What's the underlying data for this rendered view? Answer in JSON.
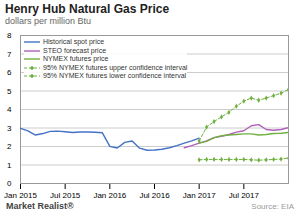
{
  "chart_data": {
    "type": "line",
    "title": "Henry Hub Natural Gas Price",
    "subtitle": "dollars per million Btu",
    "watermark": "Market Realist®",
    "source": "Source: EIA",
    "series": [
      {
        "name": "Historical spot price",
        "color": "#4472c4",
        "x": [
          0,
          1,
          2,
          3,
          4,
          5,
          6,
          7,
          8,
          9,
          10,
          11,
          12,
          13,
          14,
          15,
          16,
          17,
          18,
          19,
          20,
          21,
          22,
          23,
          24
        ],
        "values": [
          2.98,
          2.84,
          2.62,
          2.7,
          2.82,
          2.83,
          2.8,
          2.76,
          2.78,
          2.78,
          2.77,
          2.74,
          2.01,
          1.92,
          2.22,
          2.3,
          1.91,
          1.8,
          1.81,
          1.85,
          1.93,
          2.05,
          2.18,
          2.3,
          2.45
        ]
      },
      {
        "name": "STEO forecast price",
        "color": "#b060b8",
        "x": [
          22,
          23,
          24,
          25,
          26,
          27,
          28,
          29,
          30,
          31,
          32,
          33,
          34,
          35,
          36
        ],
        "values": [
          1.93,
          2.05,
          2.18,
          2.3,
          2.48,
          2.55,
          2.65,
          2.78,
          2.85,
          3.12,
          3.18,
          2.92,
          2.88,
          2.92,
          3.02
        ]
      },
      {
        "name": "NYMEX futures price",
        "color": "#70b040",
        "x": [
          24,
          25,
          26,
          27,
          28,
          29,
          30,
          31,
          32,
          33,
          34,
          35,
          36
        ],
        "values": [
          2.18,
          2.28,
          2.48,
          2.58,
          2.62,
          2.65,
          2.68,
          2.68,
          2.62,
          2.65,
          2.7,
          2.72,
          2.76
        ]
      },
      {
        "name": "95% NYMEX futures upper confidence interval",
        "color": "#70b040",
        "line_style": "dashed",
        "marker": "diamond",
        "x": [
          24,
          25,
          26,
          27,
          28,
          29,
          30,
          31,
          32,
          33,
          34,
          35,
          36
        ],
        "values": [
          2.3,
          3.05,
          3.35,
          3.6,
          3.85,
          4.18,
          4.45,
          4.62,
          4.5,
          4.62,
          4.75,
          4.88,
          5.08
        ]
      },
      {
        "name": "95% NYMEX futures lower confidence interval",
        "color": "#70b040",
        "line_style": "dashed",
        "marker": "diamond",
        "x": [
          24,
          25,
          26,
          27,
          28,
          29,
          30,
          31,
          32,
          33,
          34,
          35,
          36
        ],
        "values": [
          1.28,
          1.3,
          1.3,
          1.3,
          1.3,
          1.3,
          1.3,
          1.28,
          1.26,
          1.28,
          1.3,
          1.32,
          1.38
        ]
      }
    ],
    "xlim": [
      0,
      36
    ],
    "xticks": [
      {
        "value": 0,
        "label": "Jan 2015"
      },
      {
        "value": 6,
        "label": "Jul 2015"
      },
      {
        "value": 12,
        "label": "Jan 2016"
      },
      {
        "value": 18,
        "label": "Jul 2016"
      },
      {
        "value": 24,
        "label": "Jan 2017"
      },
      {
        "value": 30,
        "label": "Jul 2017"
      }
    ],
    "ylim": [
      0,
      8
    ],
    "yticks": [
      0,
      1,
      2,
      3,
      4,
      5,
      6,
      7,
      8
    ],
    "grid": "y",
    "legend": "upper left"
  }
}
